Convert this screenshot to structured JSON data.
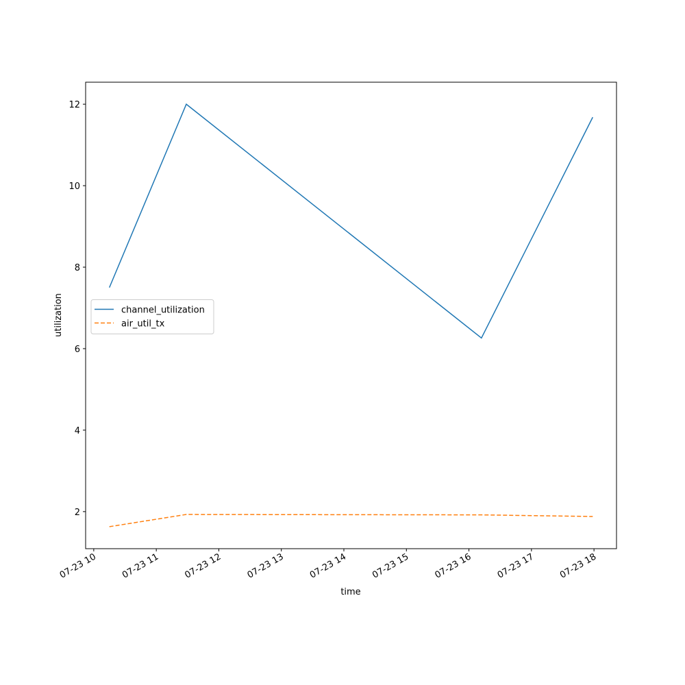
{
  "chart_data": {
    "type": "line",
    "xlabel": "time",
    "ylabel": "utilization",
    "x": [
      10.25,
      11.48,
      16.2,
      17.98
    ],
    "series": [
      {
        "name": "channel_utilization",
        "color": "#1f77b4",
        "linestyle": "solid",
        "values": [
          7.5,
          12.0,
          6.26,
          11.68
        ]
      },
      {
        "name": "air_util_tx",
        "color": "#ff7f0e",
        "linestyle": "dashed",
        "values": [
          1.63,
          1.93,
          1.92,
          1.88
        ]
      }
    ],
    "xlim": [
      9.87,
      18.36
    ],
    "xticks": [
      {
        "value": 10,
        "label": "07-23 10"
      },
      {
        "value": 11,
        "label": "07-23 11"
      },
      {
        "value": 12,
        "label": "07-23 12"
      },
      {
        "value": 13,
        "label": "07-23 13"
      },
      {
        "value": 14,
        "label": "07-23 14"
      },
      {
        "value": 15,
        "label": "07-23 15"
      },
      {
        "value": 16,
        "label": "07-23 16"
      },
      {
        "value": 17,
        "label": "07-23 17"
      },
      {
        "value": 18,
        "label": "07-23 18"
      }
    ],
    "ylim": [
      1.09,
      12.54
    ],
    "yticks": [
      2,
      4,
      6,
      8,
      10,
      12
    ],
    "legend": "center-left",
    "grid": false
  }
}
